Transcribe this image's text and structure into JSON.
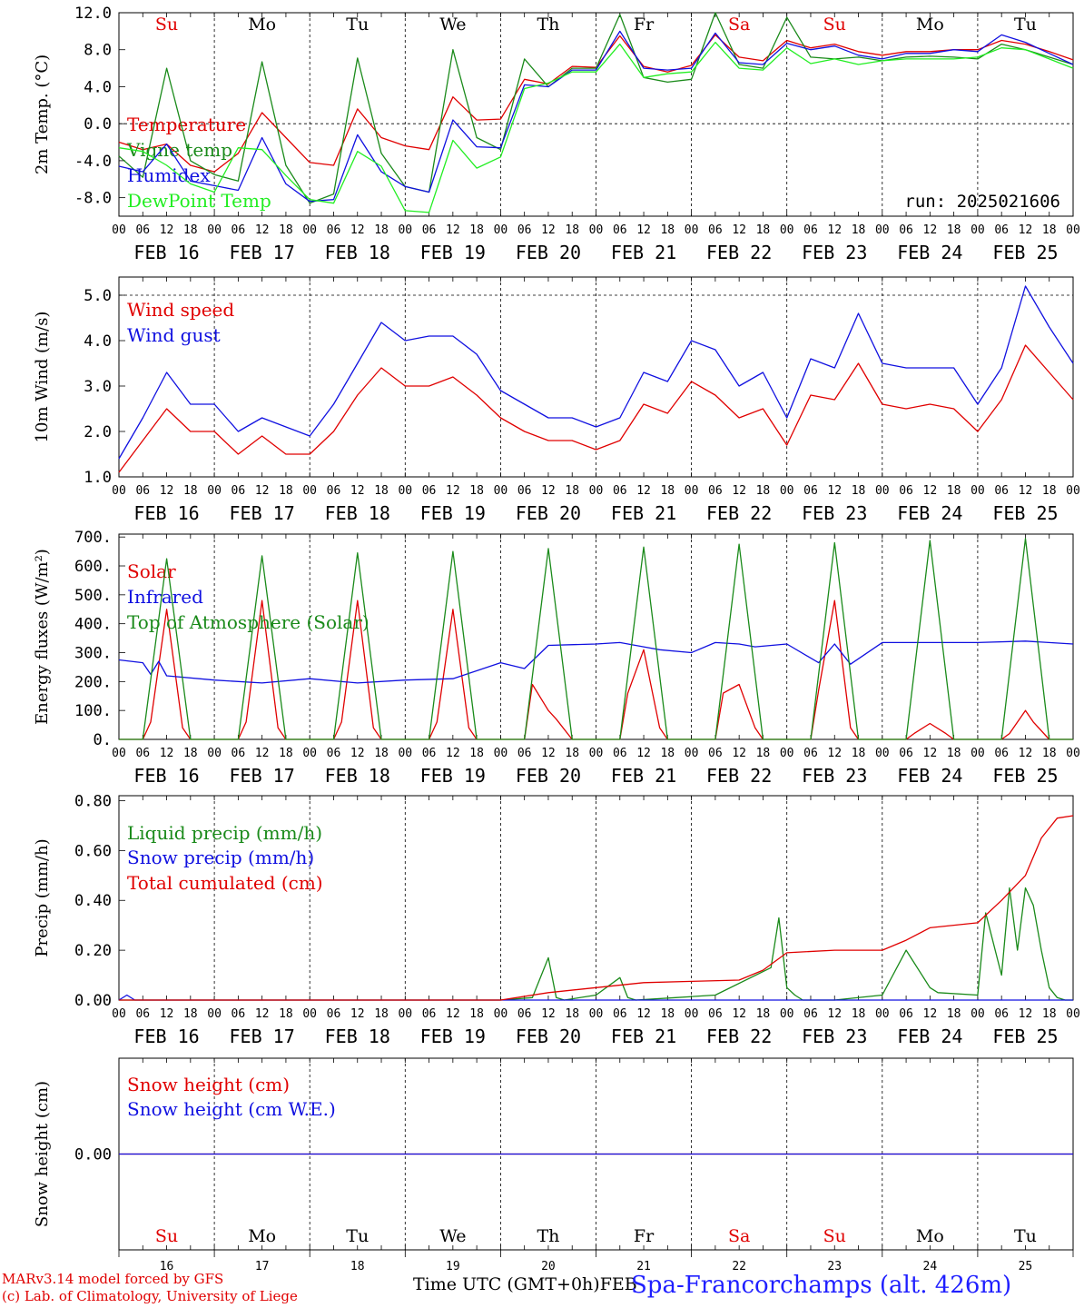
{
  "run_label": "run: 2025021606",
  "footer": {
    "line1": "MARv3.14 model forced by GFS",
    "line2": "(c) Lab. of Climatology, University of Liege",
    "x_title": "Time UTC (GMT+0h)",
    "x_title_tail": "FEB",
    "station": "Spa-Francorchamps (alt. 426m)"
  },
  "hour_ticks": [
    "00",
    "06",
    "12",
    "18"
  ],
  "end_tick": "00",
  "day_labels": [
    "FEB 16",
    "FEB 17",
    "FEB 18",
    "FEB 19",
    "FEB 20",
    "FEB 21",
    "FEB 22",
    "FEB 23",
    "FEB 24",
    "FEB 25"
  ],
  "day_numbers": [
    "16",
    "17",
    "18",
    "19",
    "20",
    "21",
    "22",
    "23",
    "24",
    "25"
  ],
  "weekdays": [
    {
      "text": "Su",
      "color": "#e00000"
    },
    {
      "text": "Mo",
      "color": "#000000"
    },
    {
      "text": "Tu",
      "color": "#000000"
    },
    {
      "text": "We",
      "color": "#000000"
    },
    {
      "text": "Th",
      "color": "#000000"
    },
    {
      "text": "Fr",
      "color": "#000000"
    },
    {
      "text": "Sa",
      "color": "#e00000"
    },
    {
      "text": "Su",
      "color": "#e00000"
    },
    {
      "text": "Mo",
      "color": "#000000"
    },
    {
      "text": "Tu",
      "color": "#000000"
    }
  ],
  "chart_data": [
    {
      "type": "line",
      "ylabel": "2m Temp. (°C)",
      "ylim": [
        -10,
        12
      ],
      "yticks": [
        -8,
        -4,
        0,
        4,
        8,
        12
      ],
      "ytick_labels": [
        "-8.0",
        "-4.0",
        "0.0",
        "4.0",
        "8.0",
        "12.0"
      ],
      "zero_line": 0,
      "x_unit": "hours since FEB 16 00 UTC",
      "series": [
        {
          "name": "Temperature",
          "color": "#e00000",
          "x": [
            0,
            6,
            12,
            18,
            24,
            30,
            36,
            42,
            48,
            54,
            60,
            66,
            72,
            78,
            84,
            90,
            96,
            102,
            108,
            114,
            120,
            126,
            132,
            138,
            144,
            150,
            156,
            162,
            168,
            174,
            180,
            186,
            192,
            198,
            204,
            210,
            216,
            222,
            228,
            234,
            240
          ],
          "y": [
            -2,
            -2.8,
            -2.2,
            -4.5,
            -5.2,
            -3.2,
            1.2,
            -1.5,
            -4.2,
            -4.5,
            1.6,
            -1.5,
            -2.4,
            -2.8,
            2.9,
            0.4,
            0.5,
            4.8,
            4.3,
            6.2,
            6.1,
            9.5,
            6.2,
            5.6,
            6.3,
            9.6,
            7.2,
            6.8,
            9.0,
            8.2,
            8.6,
            7.8,
            7.4,
            7.8,
            7.8,
            8.0,
            8.0,
            9.0,
            8.6,
            7.8,
            6.9
          ]
        },
        {
          "name": "Vigne temp",
          "color": "#1a8a1a",
          "x": [
            0,
            6,
            12,
            18,
            24,
            30,
            36,
            42,
            48,
            54,
            60,
            66,
            72,
            78,
            84,
            90,
            96,
            102,
            108,
            114,
            120,
            126,
            132,
            138,
            144,
            150,
            156,
            162,
            168,
            174,
            180,
            186,
            192,
            198,
            204,
            210,
            216,
            222,
            228,
            234,
            240
          ],
          "y": [
            -3.5,
            -5.8,
            6.0,
            -4.0,
            -5.5,
            -6.2,
            6.7,
            -4.5,
            -8.6,
            -7.6,
            7.1,
            -3.2,
            -6.8,
            -7.4,
            8.0,
            -1.5,
            -2.8,
            7.0,
            4.0,
            6.0,
            6.0,
            11.8,
            5.0,
            4.5,
            4.8,
            12.0,
            6.4,
            6.0,
            11.5,
            7.2,
            7.0,
            7.2,
            6.8,
            7.2,
            7.3,
            7.2,
            7.0,
            8.6,
            8.0,
            7.2,
            6.4
          ]
        },
        {
          "name": "Humidex",
          "color": "#1010e0",
          "x": [
            0,
            6,
            12,
            18,
            24,
            30,
            36,
            42,
            48,
            54,
            60,
            66,
            72,
            78,
            84,
            90,
            96,
            102,
            108,
            114,
            120,
            126,
            132,
            138,
            144,
            150,
            156,
            162,
            168,
            174,
            180,
            186,
            192,
            198,
            204,
            210,
            216,
            222,
            228,
            234,
            240
          ],
          "y": [
            -4.6,
            -5.2,
            -2.2,
            -6.2,
            -6.7,
            -7.2,
            -1.5,
            -6.5,
            -8.4,
            -8.2,
            -1.2,
            -5.2,
            -6.8,
            -7.4,
            0.4,
            -2.5,
            -2.6,
            4.2,
            4.0,
            5.8,
            5.8,
            10.0,
            6.0,
            5.8,
            6.0,
            9.8,
            6.6,
            6.4,
            8.7,
            8.0,
            8.4,
            7.4,
            7.0,
            7.6,
            7.6,
            8.0,
            7.8,
            9.6,
            8.8,
            7.6,
            6.4
          ]
        },
        {
          "name": "DewPoint Temp",
          "color": "#22ee22",
          "x": [
            0,
            6,
            12,
            18,
            24,
            30,
            36,
            42,
            48,
            54,
            60,
            66,
            72,
            78,
            84,
            90,
            96,
            102,
            108,
            114,
            120,
            126,
            132,
            138,
            144,
            150,
            156,
            162,
            168,
            174,
            180,
            186,
            192,
            198,
            204,
            210,
            216,
            222,
            228,
            234,
            240
          ],
          "y": [
            -2.6,
            -3,
            -4.5,
            -6.5,
            -7.4,
            -2.6,
            -2.8,
            -5.6,
            -8.2,
            -8.6,
            -3.0,
            -4.6,
            -9.4,
            -9.6,
            -1.8,
            -4.8,
            -3.6,
            3.8,
            4.4,
            5.6,
            5.6,
            8.6,
            5.0,
            5.4,
            5.6,
            8.8,
            6.0,
            5.8,
            8.2,
            6.5,
            7.0,
            6.4,
            6.8,
            7.0,
            7.0,
            7.0,
            7.2,
            8.2,
            8.0,
            7.0,
            6.0
          ]
        }
      ]
    },
    {
      "type": "line",
      "ylabel": "10m Wind (m/s)",
      "ylim": [
        1.0,
        5.4
      ],
      "yticks": [
        1,
        2,
        3,
        4,
        5
      ],
      "ytick_labels": [
        "1.0",
        "2.0",
        "3.0",
        "4.0",
        "5.0"
      ],
      "x_unit": "hours since FEB 16 00 UTC",
      "series": [
        {
          "name": "Wind speed",
          "color": "#e00000",
          "x": [
            0,
            6,
            12,
            18,
            24,
            30,
            36,
            42,
            48,
            54,
            60,
            66,
            72,
            78,
            84,
            90,
            96,
            102,
            108,
            114,
            120,
            126,
            132,
            138,
            144,
            150,
            156,
            162,
            168,
            174,
            180,
            186,
            192,
            198,
            204,
            210,
            216,
            222,
            228,
            234,
            240
          ],
          "y": [
            1.1,
            1.8,
            2.5,
            2.0,
            2.0,
            1.5,
            1.9,
            1.5,
            1.5,
            2.0,
            2.8,
            3.4,
            3.0,
            3.0,
            3.2,
            2.8,
            2.3,
            2.0,
            1.8,
            1.8,
            1.6,
            1.8,
            2.6,
            2.4,
            3.1,
            2.8,
            2.3,
            2.5,
            1.7,
            2.8,
            2.7,
            3.5,
            2.6,
            2.5,
            2.6,
            2.5,
            2.0,
            2.7,
            3.9,
            3.3,
            2.7
          ]
        },
        {
          "name": "Wind gust",
          "color": "#1010e0",
          "x": [
            0,
            6,
            12,
            18,
            24,
            30,
            36,
            42,
            48,
            54,
            60,
            66,
            72,
            78,
            84,
            90,
            96,
            102,
            108,
            114,
            120,
            126,
            132,
            138,
            144,
            150,
            156,
            162,
            168,
            174,
            180,
            186,
            192,
            198,
            204,
            210,
            216,
            222,
            228,
            234,
            240
          ],
          "y": [
            1.4,
            2.3,
            3.3,
            2.6,
            2.6,
            2.0,
            2.3,
            2.1,
            1.9,
            2.6,
            3.5,
            4.4,
            4.0,
            4.1,
            4.1,
            3.7,
            2.9,
            2.6,
            2.3,
            2.3,
            2.1,
            2.3,
            3.3,
            3.1,
            4.0,
            3.8,
            3.0,
            3.3,
            2.3,
            3.6,
            3.4,
            4.6,
            3.5,
            3.4,
            3.4,
            3.4,
            2.6,
            3.4,
            5.2,
            4.3,
            3.5
          ]
        }
      ]
    },
    {
      "type": "line",
      "ylabel": "Energy fluxes (W/m²)",
      "ylim": [
        0,
        710
      ],
      "yticks": [
        0,
        100,
        200,
        300,
        400,
        500,
        600,
        700
      ],
      "ytick_labels": [
        "0.",
        "100.",
        "200.",
        "300.",
        "400.",
        "500.",
        "600.",
        "700."
      ],
      "x_unit": "hours since FEB 16 00 UTC",
      "series": [
        {
          "name": "Solar",
          "color": "#e00000",
          "x": [
            0,
            6,
            8,
            12,
            16,
            18,
            30,
            32,
            36,
            40,
            42,
            54,
            56,
            60,
            64,
            66,
            78,
            80,
            84,
            88,
            90,
            102,
            104,
            108,
            110,
            114,
            126,
            128,
            132,
            136,
            138,
            150,
            152,
            156,
            160,
            162,
            174,
            176,
            180,
            184,
            186,
            198,
            200,
            204,
            208,
            210,
            222,
            224,
            228,
            230,
            234,
            240
          ],
          "y": [
            0,
            0,
            60,
            450,
            40,
            0,
            0,
            60,
            480,
            40,
            0,
            0,
            60,
            480,
            40,
            0,
            0,
            60,
            450,
            40,
            0,
            0,
            190,
            100,
            70,
            0,
            0,
            160,
            310,
            40,
            0,
            0,
            160,
            190,
            40,
            0,
            0,
            170,
            480,
            40,
            0,
            0,
            20,
            55,
            20,
            0,
            0,
            20,
            100,
            60,
            0,
            0
          ]
        },
        {
          "name": "Infrared",
          "color": "#1010e0",
          "x": [
            0,
            6,
            8,
            10,
            12,
            24,
            36,
            48,
            60,
            72,
            84,
            96,
            102,
            108,
            120,
            126,
            132,
            136,
            144,
            150,
            156,
            160,
            168,
            176,
            180,
            184,
            192,
            204,
            216,
            228,
            240
          ],
          "y": [
            275,
            265,
            225,
            270,
            220,
            205,
            195,
            210,
            195,
            205,
            210,
            265,
            245,
            325,
            330,
            335,
            320,
            310,
            300,
            335,
            330,
            320,
            330,
            265,
            330,
            260,
            335,
            335,
            335,
            340,
            330
          ]
        },
        {
          "name": "Top of Atmosphere (Solar)",
          "color": "#1a8a1a",
          "x": [
            0,
            6,
            12,
            18,
            24,
            30,
            36,
            42,
            48,
            54,
            60,
            66,
            72,
            78,
            84,
            90,
            96,
            102,
            108,
            114,
            120,
            126,
            132,
            138,
            144,
            150,
            156,
            162,
            168,
            174,
            180,
            186,
            192,
            198,
            204,
            210,
            216,
            222,
            228,
            234,
            240
          ],
          "y": [
            0,
            0,
            625,
            0,
            0,
            0,
            635,
            0,
            0,
            0,
            645,
            0,
            0,
            0,
            650,
            0,
            0,
            0,
            660,
            0,
            0,
            0,
            665,
            0,
            0,
            0,
            675,
            0,
            0,
            0,
            680,
            0,
            0,
            0,
            688,
            0,
            0,
            0,
            695,
            0,
            0
          ]
        }
      ]
    },
    {
      "type": "line",
      "ylabel": "Precip (mm/h)",
      "ylim": [
        0,
        0.82
      ],
      "yticks": [
        0,
        0.2,
        0.4,
        0.6,
        0.8
      ],
      "ytick_labels": [
        "0.00",
        "0.20",
        "0.40",
        "0.60",
        "0.80"
      ],
      "x_unit": "hours since FEB 16 00 UTC",
      "series": [
        {
          "name": "Liquid precip (mm/h)",
          "color": "#1a8a1a",
          "x": [
            0,
            96,
            104,
            108,
            110,
            112,
            120,
            126,
            128,
            130,
            140,
            150,
            164,
            166,
            168,
            170,
            172,
            180,
            192,
            198,
            204,
            206,
            216,
            218,
            222,
            224,
            226,
            228,
            230,
            232,
            234,
            236,
            238,
            240
          ],
          "y": [
            0,
            0,
            0.01,
            0.17,
            0.01,
            0.0,
            0.02,
            0.09,
            0.01,
            0.0,
            0.01,
            0.02,
            0.13,
            0.33,
            0.05,
            0.02,
            0.0,
            0.0,
            0.02,
            0.2,
            0.05,
            0.03,
            0.02,
            0.35,
            0.1,
            0.45,
            0.2,
            0.45,
            0.38,
            0.2,
            0.05,
            0.01,
            0.0,
            0.0
          ]
        },
        {
          "name": "Snow precip (mm/h)",
          "color": "#1010e0",
          "x": [
            0,
            2,
            4,
            240
          ],
          "y": [
            0,
            0.02,
            0,
            0
          ]
        },
        {
          "name": "Total cumulated (cm)",
          "color": "#e00000",
          "x": [
            0,
            96,
            108,
            120,
            132,
            144,
            156,
            162,
            168,
            180,
            192,
            198,
            204,
            216,
            222,
            228,
            232,
            236,
            240
          ],
          "y": [
            0,
            0,
            0.03,
            0.05,
            0.07,
            0.075,
            0.08,
            0.12,
            0.19,
            0.2,
            0.2,
            0.24,
            0.29,
            0.31,
            0.4,
            0.5,
            0.65,
            0.73,
            0.74
          ]
        }
      ]
    },
    {
      "type": "line",
      "ylabel": "Snow height (cm)",
      "ylim": [
        -1,
        1
      ],
      "yticks": [
        0
      ],
      "ytick_labels": [
        "0.00"
      ],
      "x_unit": "hours since FEB 16 00 UTC",
      "series": [
        {
          "name": "Snow height (cm)",
          "color": "#e00000",
          "x": [
            0,
            240
          ],
          "y": [
            0,
            0
          ]
        },
        {
          "name": "Snow height (cm W.E.)",
          "color": "#1010e0",
          "x": [
            0,
            240
          ],
          "y": [
            0,
            0
          ]
        }
      ]
    }
  ]
}
